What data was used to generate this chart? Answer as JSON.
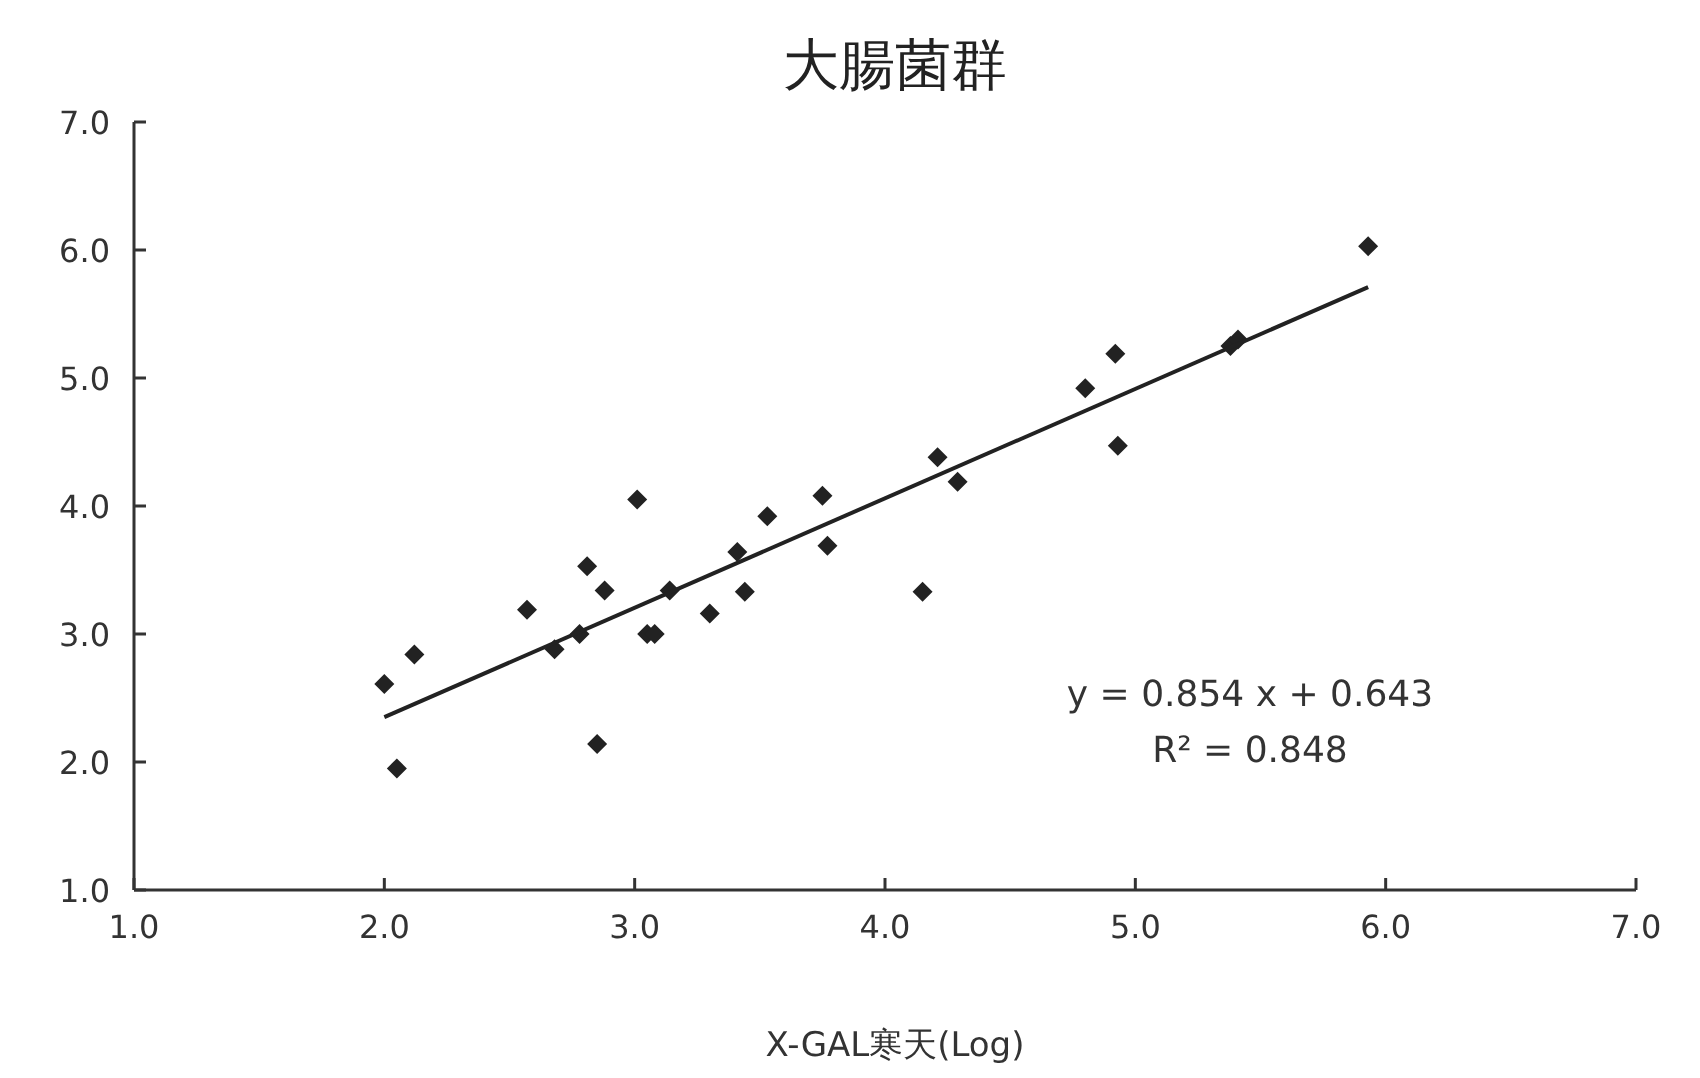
{
  "chart_data": {
    "type": "scatter",
    "title": "大腸菌群",
    "xlabel": "X-GAL寒天(Log)",
    "xlim": [
      1,
      7
    ],
    "ylim": [
      1,
      7
    ],
    "xticks": [
      {
        "value": 1,
        "label": "1.0"
      },
      {
        "value": 2,
        "label": "2.0"
      },
      {
        "value": 3,
        "label": "3.0"
      },
      {
        "value": 4,
        "label": "4.0"
      },
      {
        "value": 5,
        "label": "5.0"
      },
      {
        "value": 6,
        "label": "6.0"
      },
      {
        "value": 7,
        "label": "7.0"
      }
    ],
    "yticks": [
      {
        "value": 1,
        "label": "1.0"
      },
      {
        "value": 2,
        "label": "2.0"
      },
      {
        "value": 3,
        "label": "3.0"
      },
      {
        "value": 4,
        "label": "4.0"
      },
      {
        "value": 5,
        "label": "5.0"
      },
      {
        "value": 6,
        "label": "6.0"
      },
      {
        "value": 7,
        "label": "7.0"
      }
    ],
    "grid": false,
    "marker": "diamond",
    "series": [
      {
        "color": "#222222",
        "x": [
          2.0,
          2.05,
          2.12,
          2.57,
          2.68,
          2.78,
          2.81,
          2.88,
          2.85,
          3.01,
          3.05,
          3.08,
          3.14,
          3.3,
          3.41,
          3.44,
          3.53,
          3.75,
          3.77,
          4.15,
          4.21,
          4.29,
          4.8,
          4.92,
          4.93,
          5.38,
          5.41,
          5.93
        ],
        "values": [
          2.61,
          1.95,
          2.84,
          3.19,
          2.88,
          3.0,
          3.53,
          3.34,
          2.14,
          4.05,
          3.0,
          3.0,
          3.34,
          3.16,
          3.64,
          3.33,
          3.92,
          4.08,
          3.69,
          3.33,
          4.38,
          4.19,
          4.92,
          5.19,
          4.47,
          5.25,
          5.3,
          6.03
        ]
      },
      {
        "type": "line",
        "color": "#222222",
        "marker": "none",
        "x": [
          2.0,
          5.93
        ],
        "values": [
          2.35,
          5.71
        ]
      }
    ],
    "annotations": [
      "y = 0.854 x + 0.643",
      "R² = 0.848"
    ]
  }
}
